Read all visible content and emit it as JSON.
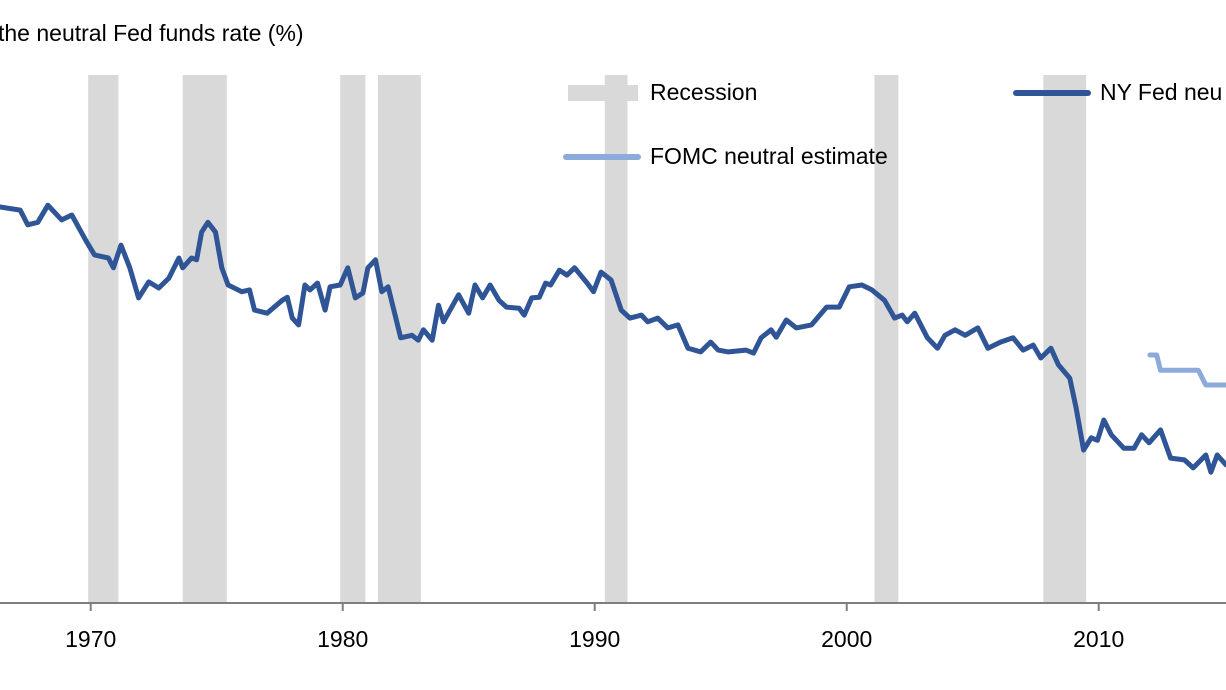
{
  "chart_data": {
    "type": "line",
    "title": "the neutral Fed funds rate (%)",
    "xlim": [
      1966.4,
      2015.05
    ],
    "xticks": [
      1970,
      1980,
      1990,
      2000,
      2010
    ],
    "ylim": [
      0,
      8.6
    ],
    "recession": {
      "name": "Recession",
      "color": "#d9d9d9",
      "spans": [
        [
          1969.9,
          1971.1
        ],
        [
          1973.65,
          1975.4
        ],
        [
          1979.9,
          1980.9
        ],
        [
          1981.4,
          1983.1
        ],
        [
          1990.4,
          1991.3
        ],
        [
          2001.1,
          2002.05
        ],
        [
          2007.8,
          2009.5
        ]
      ]
    },
    "series": [
      {
        "name": "NY Fed neu",
        "color": "#2f5597",
        "x": [
          1966.4,
          1967.2,
          1967.5,
          1967.9,
          1968.3,
          1968.85,
          1969.25,
          1969.8,
          1970.15,
          1970.7,
          1970.9,
          1971.2,
          1971.55,
          1971.9,
          1972.3,
          1972.7,
          1973.1,
          1973.5,
          1973.65,
          1974.0,
          1974.2,
          1974.4,
          1974.65,
          1974.95,
          1975.2,
          1975.45,
          1976.0,
          1976.3,
          1976.5,
          1977.0,
          1977.6,
          1977.8,
          1978.0,
          1978.25,
          1978.5,
          1978.7,
          1979.0,
          1979.3,
          1979.5,
          1979.9,
          1980.2,
          1980.5,
          1980.8,
          1981.0,
          1981.3,
          1981.55,
          1981.8,
          1982.3,
          1982.75,
          1983.0,
          1983.2,
          1983.55,
          1983.8,
          1984.0,
          1984.6,
          1985.0,
          1985.25,
          1985.55,
          1985.85,
          1986.2,
          1986.5,
          1987.0,
          1987.2,
          1987.5,
          1987.8,
          1988.05,
          1988.25,
          1988.6,
          1988.9,
          1989.2,
          1989.7,
          1989.95,
          1990.25,
          1990.65,
          1991.05,
          1991.4,
          1991.85,
          1992.1,
          1992.5,
          1992.9,
          1993.3,
          1993.7,
          1994.2,
          1994.6,
          1994.9,
          1995.3,
          1996.0,
          1996.3,
          1996.6,
          1997.0,
          1997.2,
          1997.6,
          1998.0,
          1998.6,
          1999.2,
          1999.7,
          2000.1,
          2000.6,
          2001.0,
          2001.5,
          2001.9,
          2002.2,
          2002.4,
          2002.7,
          2003.2,
          2003.6,
          2003.9,
          2004.3,
          2004.7,
          2005.2,
          2005.6,
          2006.1,
          2006.6,
          2007.0,
          2007.4,
          2007.7,
          2008.1,
          2008.4,
          2008.85,
          2009.1,
          2009.4,
          2009.7,
          2009.95,
          2010.2,
          2010.5,
          2011.0,
          2011.4,
          2011.7,
          2012.0,
          2012.45,
          2012.85,
          2013.4,
          2013.75,
          2014.25,
          2014.45,
          2014.7,
          2015.05
        ],
        "values": [
          6.45,
          6.4,
          6.16,
          6.2,
          6.48,
          6.24,
          6.32,
          5.91,
          5.67,
          5.62,
          5.46,
          5.83,
          5.46,
          4.97,
          5.23,
          5.13,
          5.29,
          5.62,
          5.46,
          5.62,
          5.59,
          6.04,
          6.2,
          6.04,
          5.46,
          5.18,
          5.07,
          5.1,
          4.77,
          4.72,
          4.93,
          4.98,
          4.64,
          4.53,
          5.18,
          5.1,
          5.21,
          4.77,
          5.15,
          5.18,
          5.46,
          4.97,
          5.05,
          5.46,
          5.59,
          5.07,
          5.15,
          4.32,
          4.36,
          4.28,
          4.45,
          4.28,
          4.85,
          4.58,
          5.02,
          4.72,
          5.18,
          4.97,
          5.18,
          4.93,
          4.82,
          4.8,
          4.69,
          4.97,
          4.98,
          5.21,
          5.18,
          5.42,
          5.34,
          5.46,
          5.21,
          5.07,
          5.39,
          5.26,
          4.77,
          4.64,
          4.69,
          4.58,
          4.64,
          4.48,
          4.53,
          4.15,
          4.09,
          4.25,
          4.12,
          4.09,
          4.12,
          4.07,
          4.32,
          4.45,
          4.33,
          4.61,
          4.48,
          4.53,
          4.82,
          4.82,
          5.15,
          5.18,
          5.1,
          4.93,
          4.64,
          4.69,
          4.58,
          4.72,
          4.32,
          4.15,
          4.36,
          4.45,
          4.36,
          4.48,
          4.15,
          4.25,
          4.32,
          4.12,
          4.2,
          3.99,
          4.15,
          3.88,
          3.66,
          3.18,
          2.49,
          2.69,
          2.65,
          2.98,
          2.74,
          2.52,
          2.52,
          2.74,
          2.61,
          2.82,
          2.36,
          2.33,
          2.2,
          2.41,
          2.13,
          2.41,
          2.25
        ]
      },
      {
        "name": "FOMC neutral estimate",
        "color": "#8eaadb",
        "x": [
          2012.03,
          2012.3,
          2012.45,
          2013.95,
          2014.25,
          2015.05
        ],
        "values": [
          4.04,
          4.04,
          3.79,
          3.79,
          3.55,
          3.55
        ]
      }
    ]
  }
}
